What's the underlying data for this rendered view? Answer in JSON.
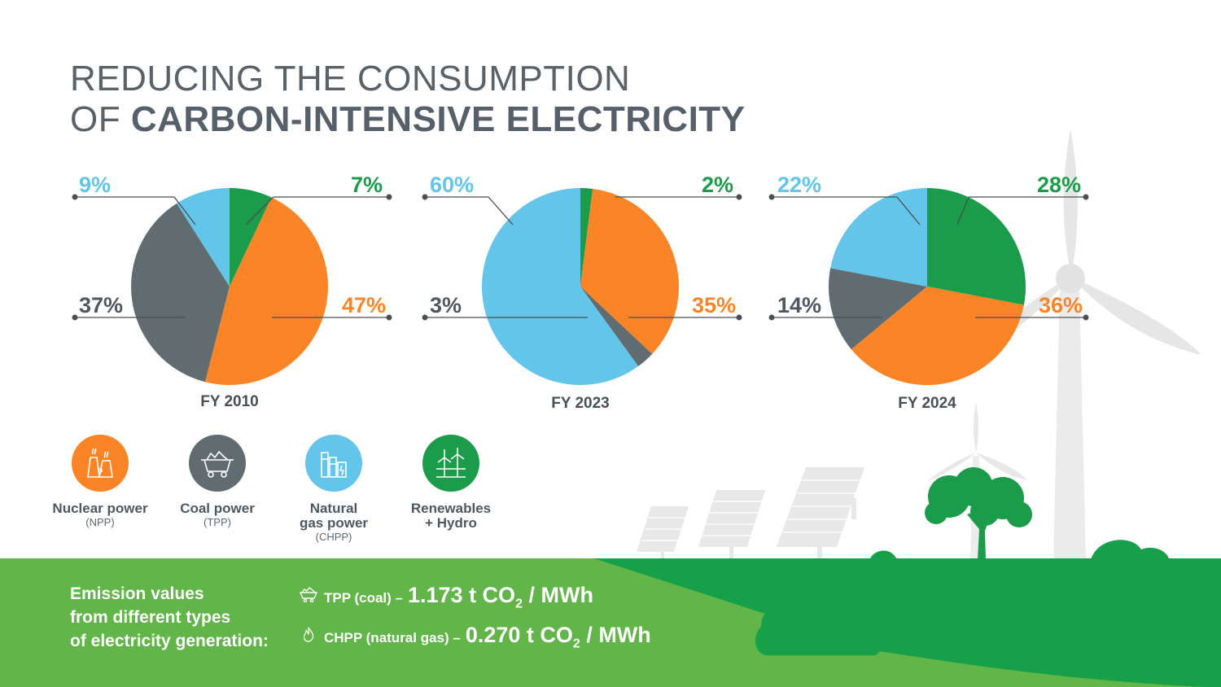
{
  "title": {
    "line1": "REDUCING THE CONSUMPTION",
    "line2_prefix": "OF ",
    "line2_bold": "CARBON-INTENSIVE ELECTRICITY"
  },
  "colors": {
    "nuclear": "#fb8526",
    "coal": "#616c71",
    "gas": "#62c5e9",
    "renewables": "#1b9c4a",
    "ground_light": "#62b548",
    "ground_dark": "#16a04a"
  },
  "chart_data": [
    {
      "type": "pie",
      "title": "FY 2010",
      "categories": [
        "Renewables + Hydro",
        "Nuclear power",
        "Coal power",
        "Natural gas power"
      ],
      "values": [
        7,
        47,
        37,
        9
      ],
      "labels": [
        "7%",
        "47%",
        "37%",
        "9%"
      ]
    },
    {
      "type": "pie",
      "title": "FY 2023",
      "categories": [
        "Renewables + Hydro",
        "Nuclear power",
        "Coal power",
        "Natural gas power"
      ],
      "values": [
        2,
        35,
        3,
        60
      ],
      "labels": [
        "2%",
        "35%",
        "3%",
        "60%"
      ]
    },
    {
      "type": "pie",
      "title": "FY 2024",
      "categories": [
        "Renewables + Hydro",
        "Nuclear power",
        "Coal power",
        "Natural gas power"
      ],
      "values": [
        28,
        36,
        14,
        22
      ],
      "labels": [
        "28%",
        "36%",
        "14%",
        "22%"
      ]
    }
  ],
  "legend": [
    {
      "label": "Nuclear power",
      "sub": "(NPP)",
      "icon": "nuclear-plant-icon"
    },
    {
      "label": "Coal power",
      "sub": "(TPP)",
      "icon": "coal-cart-icon"
    },
    {
      "label_line1": "Natural",
      "label_line2": "gas power",
      "sub": "(CHPP)",
      "icon": "gas-plant-icon"
    },
    {
      "label_line1": "Renewables",
      "label_line2": "+ Hydro",
      "icon": "wind-turbine-icon"
    }
  ],
  "emissions": {
    "title_lines": [
      "Emission values",
      "from different types",
      "of electricity generation:"
    ],
    "rows": [
      {
        "label": "TPP (coal) –",
        "value": "1.173 t CO",
        "sub": "2",
        "unit": " / MWh",
        "icon": "coal-cart-icon"
      },
      {
        "label": "CHPP (natural gas) –",
        "value": "0.270 t CO",
        "sub": "2",
        "unit": " / MWh",
        "icon": "flame-icon"
      }
    ]
  }
}
